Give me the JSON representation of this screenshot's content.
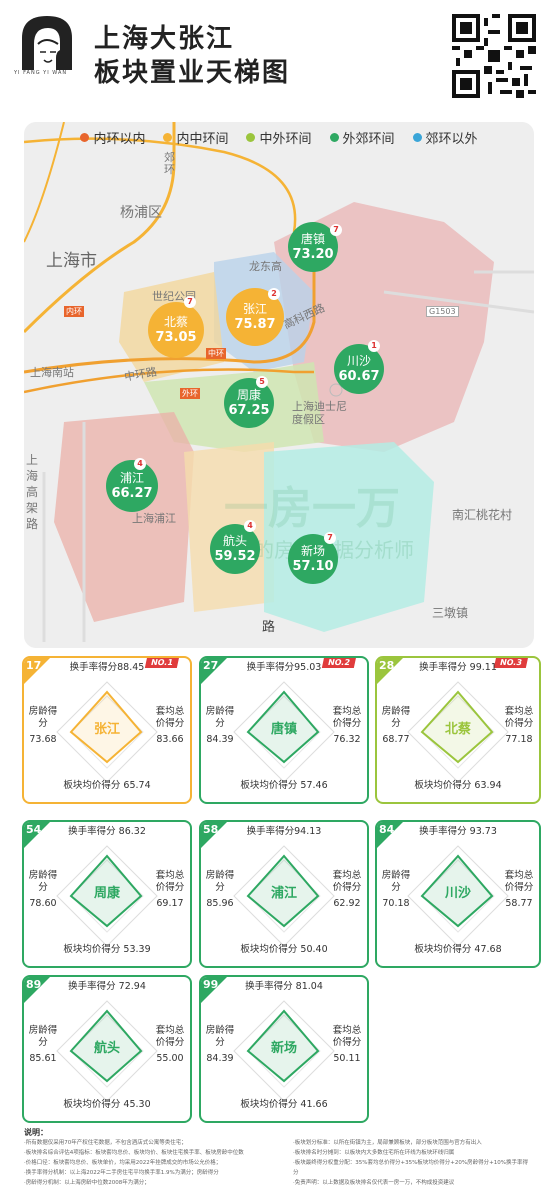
{
  "header": {
    "logo_sub": "YI FANG YI WAN",
    "title_line1": "上海大张江",
    "title_line2": "板块置业天梯图"
  },
  "map": {
    "legend": [
      {
        "label": "内环以内",
        "color": "#e8652c"
      },
      {
        "label": "内中环间",
        "color": "#f5b335"
      },
      {
        "label": "中外环间",
        "color": "#9bc53d"
      },
      {
        "label": "外郊环间",
        "color": "#2ea862"
      },
      {
        "label": "郊环以外",
        "color": "#3aa5d8"
      }
    ],
    "labels": {
      "yangpu": "杨浦区",
      "shanghai": "上海市",
      "nanzhan": "上海南站",
      "shiji": "世纪公园",
      "disney": "上海迪士尼度假区",
      "longyang": "龙东高",
      "kejixilu": "高科西路",
      "zhonghuan": "中环",
      "zhonghuanlu": "中环路",
      "waihuan": "外环",
      "nanhui": "南汇桃花村",
      "sandun": "三墩镇",
      "neihuan": "内环",
      "gaojia": "上海高架路",
      "pujiang": "上海浦江",
      "zhenzhou": "郊环",
      "road": "路",
      "g1503": "G1503"
    },
    "watermark": "一房一万",
    "watermark_sub": "你的房产数据分析师",
    "bubbles": [
      {
        "name": "唐镇",
        "score": "73.20",
        "rank": "7",
        "color": "#2ea862"
      },
      {
        "name": "北蔡",
        "score": "73.05",
        "rank": "7",
        "color": "#f5b335"
      },
      {
        "name": "张江",
        "score": "75.87",
        "rank": "2",
        "color": "#f5b335"
      },
      {
        "name": "川沙",
        "score": "60.67",
        "rank": "1",
        "color": "#2ea862"
      },
      {
        "name": "周康",
        "score": "67.25",
        "rank": "5",
        "color": "#2ea862"
      },
      {
        "name": "浦江",
        "score": "66.27",
        "rank": "4",
        "color": "#2ea862"
      },
      {
        "name": "航头",
        "score": "59.52",
        "rank": "4",
        "color": "#2ea862"
      },
      {
        "name": "新场",
        "score": "57.10",
        "rank": "7",
        "color": "#2ea862"
      }
    ]
  },
  "cards": [
    {
      "num": "17",
      "name": "张江",
      "badge": "NO.1",
      "color": "#f5b335",
      "turnover": "换手率得分88.45",
      "age_label": "房龄得分",
      "age": "73.68",
      "total_label": "套均总价得分",
      "total": "83.66",
      "price": "板块均价得分 65.74"
    },
    {
      "num": "27",
      "name": "唐镇",
      "badge": "NO.2",
      "color": "#2ea862",
      "turnover": "换手率得分95.03",
      "age_label": "房龄得分",
      "age": "84.39",
      "total_label": "套均总价得分",
      "total": "76.32",
      "price": "板块均价得分 57.46"
    },
    {
      "num": "28",
      "name": "北蔡",
      "badge": "NO.3",
      "color": "#9bc53d",
      "turnover": "换手率得分 99.11",
      "age_label": "房龄得分",
      "age": "68.77",
      "total_label": "套均总价得分",
      "total": "77.18",
      "price": "板块均价得分 63.94"
    },
    {
      "num": "54",
      "name": "周康",
      "badge": "",
      "color": "#2ea862",
      "turnover": "换手率得分 86.32",
      "age_label": "房龄得分",
      "age": "78.60",
      "total_label": "套均总价得分",
      "total": "69.17",
      "price": "板块均价得分 53.39"
    },
    {
      "num": "58",
      "name": "浦江",
      "badge": "",
      "color": "#2ea862",
      "turnover": "换手率得分94.13",
      "age_label": "房龄得分",
      "age": "85.96",
      "total_label": "套均总价得分",
      "total": "62.92",
      "price": "板块均价得分 50.40"
    },
    {
      "num": "84",
      "name": "川沙",
      "badge": "",
      "color": "#2ea862",
      "turnover": "换手率得分 93.73",
      "age_label": "房龄得分",
      "age": "70.18",
      "total_label": "套均总价得分",
      "total": "58.77",
      "price": "板块均价得分 47.68"
    },
    {
      "num": "89",
      "name": "航头",
      "badge": "",
      "color": "#2ea862",
      "turnover": "换手率得分 72.94",
      "age_label": "房龄得分",
      "age": "85.61",
      "total_label": "套均总价得分",
      "total": "55.00",
      "price": "板块均价得分 45.30"
    },
    {
      "num": "99",
      "name": "新场",
      "badge": "",
      "color": "#2ea862",
      "turnover": "换手率得分 81.04",
      "age_label": "房龄得分",
      "age": "84.39",
      "total_label": "套均总价得分",
      "total": "50.11",
      "price": "板块均价得分 41.66"
    }
  ],
  "notes": {
    "title": "说明：",
    "left": [
      "·所有数据仅采用70年产权住宅数据，不包含酒店式公寓等类住宅；",
      "·板块排名综合评估4项指标：板块套均总价、板块均价、板块住宅换手率、板块房龄中位数",
      "·价格口径：板块套均总价、板块单价，均采用2022年挂牌成交的市场公允价格；",
      "·换手率得分机制：以上海2022年二手房住宅平均换手率1.9%为满分；房龄得分",
      "·房龄得分机制：以上海房龄中位数2008年为满分；"
    ],
    "right": [
      "·板块划分标准：以所在街镇为主，局部兼顾板块，部分板块范围与官方有出入",
      "·板块排名时分摊到：以板块内大多数住宅所在环线为板块环线归属",
      "·板块最终得分权重分配：35%套均总价得分+35%板块均价得分+20%房龄得分+10%换手率得分",
      "·免责声明：以上数据及板块排名仅代表一房一万，不构成投资建议"
    ]
  }
}
